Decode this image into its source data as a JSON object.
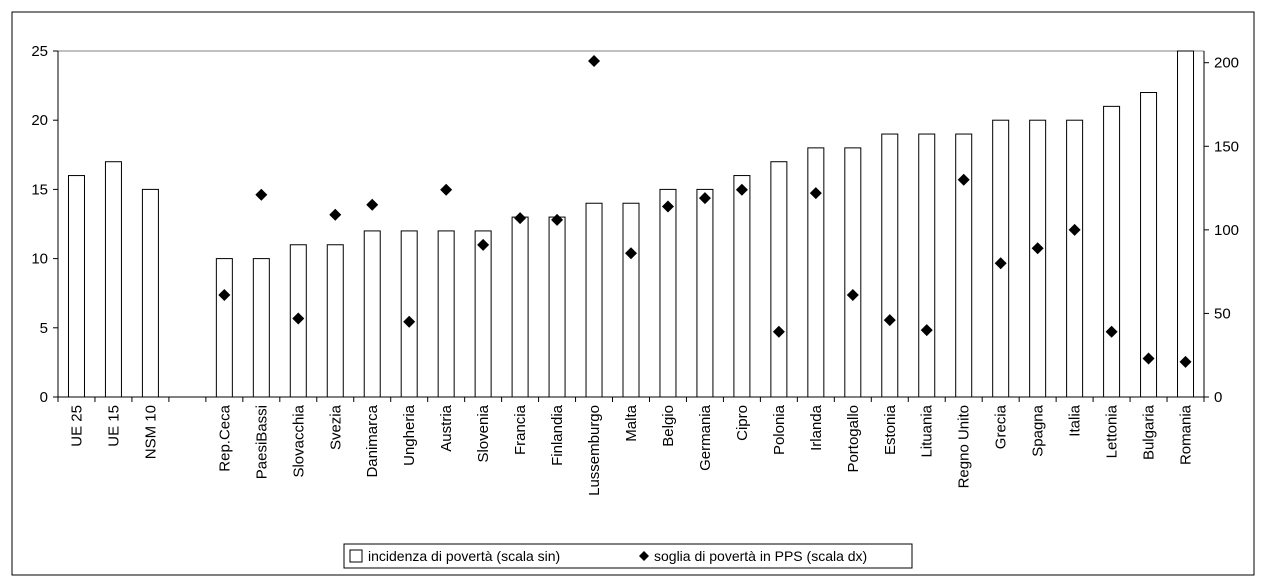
{
  "chart_data": {
    "type": "bar",
    "title": "",
    "xlabel": "",
    "ylabel": "",
    "categories": [
      "UE 25",
      "UE 15",
      "NSM 10",
      "",
      "Rep.Ceca",
      "PaesiBassi",
      "Slovacchia",
      "Svezia",
      "Danimarca",
      "Ungheria",
      "Austria",
      "Slovenia",
      "Francia",
      "Finlandia",
      "Lussemburgo",
      "Malta",
      "Belgio",
      "Germania",
      "Cipro",
      "Polonia",
      "Irlanda",
      "Portogallo",
      "Estonia",
      "Lituania",
      "Regno Unito",
      "Grecia",
      "Spagna",
      "Italia",
      "Lettonia",
      "Bulgaria",
      "Romania"
    ],
    "ylim_left": [
      0,
      25
    ],
    "yticks_left": [
      0,
      5,
      10,
      15,
      20,
      25
    ],
    "ylim_right": [
      0,
      207
    ],
    "yticks_right": [
      0,
      50,
      100,
      150,
      200
    ],
    "gridlines": false,
    "legend_position": "bottom-center",
    "series": [
      {
        "name": "incidenza di povertà (scala sin)",
        "type": "bar",
        "axis": "left",
        "color": "#ffffff",
        "values": [
          16,
          17,
          15,
          null,
          10,
          10,
          11,
          11,
          12,
          12,
          12,
          12,
          13,
          13,
          14,
          14,
          15,
          15,
          16,
          17,
          18,
          18,
          19,
          19,
          19,
          20,
          20,
          20,
          21,
          22,
          25
        ]
      },
      {
        "name": "soglia di povertà in PPS (scala dx)",
        "type": "scatter",
        "axis": "right",
        "marker": "diamond",
        "color": "#000000",
        "values": [
          null,
          null,
          null,
          null,
          61,
          121,
          47,
          109,
          115,
          45,
          124,
          91,
          107,
          106,
          201,
          86,
          114,
          119,
          124,
          39,
          122,
          61,
          46,
          40,
          130,
          80,
          89,
          100,
          39,
          23,
          21
        ]
      }
    ]
  }
}
